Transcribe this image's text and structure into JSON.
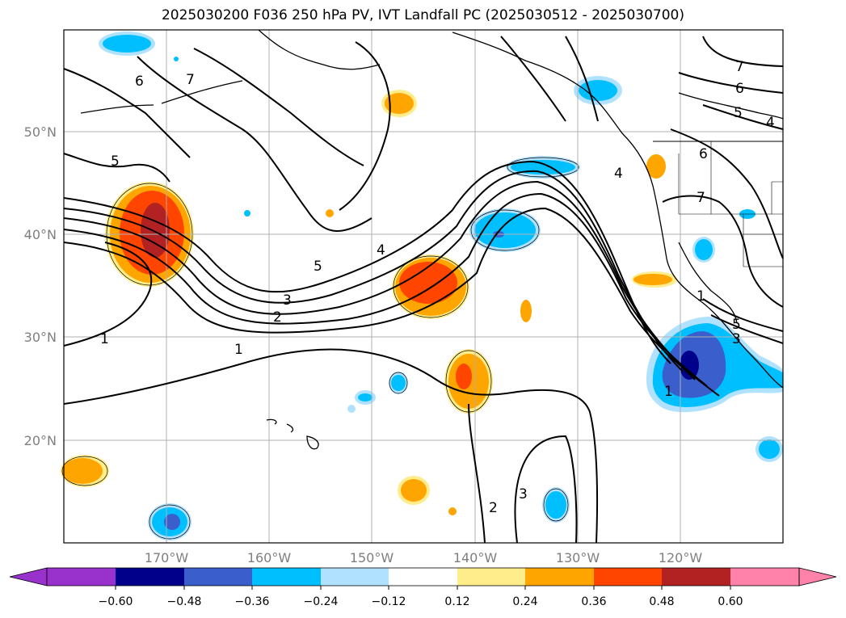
{
  "title": "2025030200 F036 250 hPa PV, IVT Landfall PC (2025030512 - 2025030700)",
  "map": {
    "lat_range": [
      10,
      60
    ],
    "lon_range": [
      -180,
      -110
    ],
    "lat_ticks": [
      {
        "value": 20,
        "label": "20°N"
      },
      {
        "value": 30,
        "label": "30°N"
      },
      {
        "value": 40,
        "label": "40°N"
      },
      {
        "value": 50,
        "label": "50°N"
      }
    ],
    "lon_ticks": [
      {
        "value": -170,
        "label": "170°W"
      },
      {
        "value": -160,
        "label": "160°W"
      },
      {
        "value": -150,
        "label": "150°W"
      },
      {
        "value": -140,
        "label": "140°W"
      },
      {
        "value": -130,
        "label": "130°W"
      },
      {
        "value": -120,
        "label": "120°W"
      }
    ],
    "grid": true,
    "contour_labels": [
      "6",
      "7",
      "5",
      "4",
      "5",
      "3",
      "2",
      "1",
      "1",
      "7",
      "6",
      "5",
      "4",
      "6",
      "7",
      "4",
      "5",
      "3",
      "1",
      "2",
      "3",
      "1"
    ]
  },
  "colorbar": {
    "labels": [
      "−0.60",
      "−0.48",
      "−0.36",
      "−0.24",
      "−0.12",
      "0.12",
      "0.24",
      "0.36",
      "0.48",
      "0.60"
    ],
    "colors": [
      "#9932cc",
      "#00008b",
      "#3a5fcd",
      "#00bfff",
      "#b0e2ff",
      "#ffffff",
      "#ffec8b",
      "#ffa500",
      "#ff4500",
      "#b22222",
      "#ff82ab"
    ]
  }
}
